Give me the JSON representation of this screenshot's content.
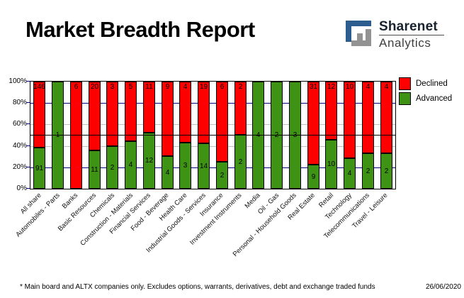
{
  "title": "Market Breadth Report",
  "logo": {
    "name": "Sharenet",
    "sub": "Analytics",
    "blue": "#2d5d8e",
    "gray": "#939393"
  },
  "legend": {
    "declined_label": "Declined",
    "advanced_label": "Advanced"
  },
  "colors": {
    "declined": "#fe0000",
    "advanced": "#3e9314",
    "grid_major": "#000080",
    "grid_minor": "#c0c0c0",
    "midline": "#000000"
  },
  "y_axis": {
    "tick_labels": [
      "100%",
      "80%",
      "60%",
      "40%",
      "20%",
      "0%"
    ],
    "tick_values": [
      100,
      80,
      60,
      40,
      20,
      0
    ]
  },
  "chart_data": {
    "type": "bar",
    "stacked": true,
    "normalized": "percent",
    "title": "Market Breadth Report",
    "xlabel": "",
    "ylabel": "",
    "ylim": [
      0,
      100
    ],
    "grid": true,
    "gridlines": {
      "navy_at": [
        80,
        20
      ],
      "silver_at": [
        60,
        40
      ],
      "black_reference_at": 50
    },
    "legend_position": "top-right",
    "categories": [
      "All share",
      "Automobiles - Parts",
      "Banks",
      "Basic Resources",
      "Chemicals",
      "Construction - Materials",
      "Financial Services",
      "Food - Beverage",
      "Health Care",
      "Industrial Goods - Services",
      "Insurance",
      "Investment Instruments",
      "Media",
      "Oil - Gas",
      "Personal - Household Goods",
      "Real Estate",
      "Retail",
      "Technology",
      "Telecommunications",
      "Travel - Leisure"
    ],
    "series": [
      {
        "name": "Declined",
        "color": "#fe0000",
        "values": [
          146,
          0,
          6,
          20,
          3,
          5,
          11,
          9,
          4,
          19,
          6,
          2,
          0,
          0,
          0,
          31,
          12,
          10,
          4,
          4
        ]
      },
      {
        "name": "Advanced",
        "color": "#3e9314",
        "values": [
          91,
          1,
          0,
          11,
          2,
          4,
          12,
          4,
          3,
          14,
          2,
          2,
          4,
          2,
          3,
          9,
          10,
          4,
          2,
          2
        ]
      }
    ]
  },
  "footnote": "* Main board and ALTX companies only. Excludes options, warrants, derivatives, debt and exchange traded funds",
  "date": "26/06/2020"
}
